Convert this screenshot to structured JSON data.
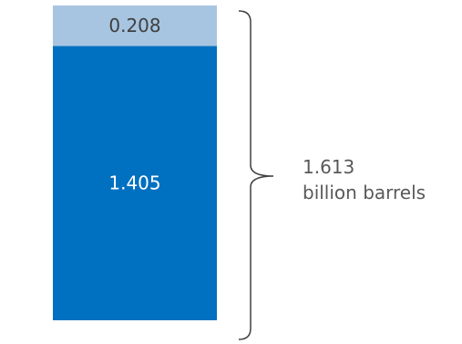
{
  "chart_data": {
    "type": "bar",
    "stacked": true,
    "categories": [
      ""
    ],
    "series": [
      {
        "values": [
          1.405
        ],
        "color": "#0070c0",
        "label_color": "#ffffff"
      },
      {
        "values": [
          0.208
        ],
        "color": "#a7c5e1",
        "label_color": "#404040"
      }
    ],
    "data_labels": [
      "1.405",
      "0.208"
    ],
    "total": {
      "value": 1.613,
      "value_label": "1.613",
      "unit_label": "billion barrels"
    },
    "bracket_color": "#404040"
  }
}
